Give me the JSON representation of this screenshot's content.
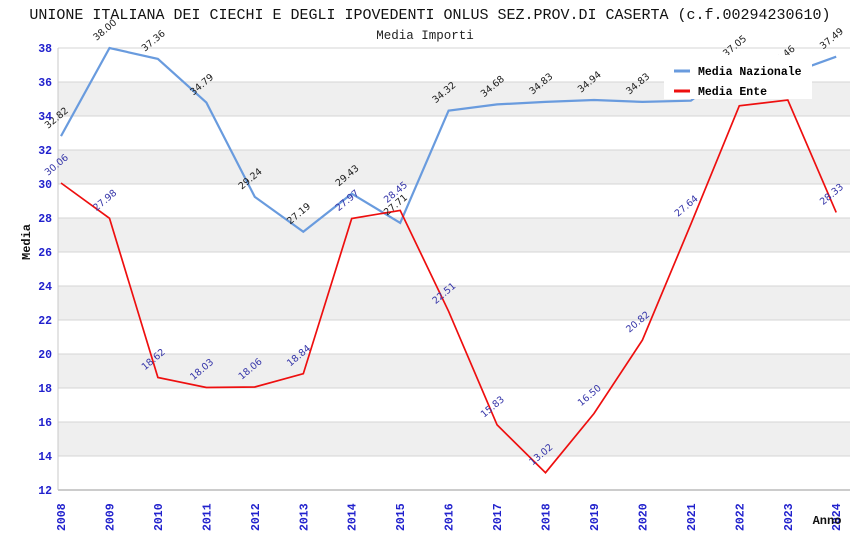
{
  "chart_data": {
    "type": "line",
    "title": "UNIONE ITALIANA DEI CIECHI E DEGLI IPOVEDENTI ONLUS SEZ.PROV.DI CASERTA (c.f.00294230610)",
    "subtitle": "Media Importi",
    "xlabel": "Anno",
    "ylabel": "Media",
    "x_categories": [
      "2008",
      "2009",
      "2010",
      "2011",
      "2012",
      "2013",
      "2014",
      "2015",
      "2016",
      "2017",
      "2018",
      "2019",
      "2020",
      "2021",
      "2022",
      "2023",
      "2024"
    ],
    "y_axis": {
      "min": 12,
      "max": 38,
      "step": 2
    },
    "grid": {
      "alternating_bands": true,
      "band_color": "#efefef",
      "grid_color": "#d6d6d6",
      "bottom_axis_color": "#9a9a9a",
      "left_axis_color": "#c8c8c8"
    },
    "axis_tick_color": "#2121cd",
    "legend": {
      "position": "top-right",
      "background": "#ffffff"
    },
    "series": [
      {
        "name": "Media Nazionale",
        "color": "#699bde",
        "label_color": "#1c1c1c",
        "values": [
          32.82,
          38.0,
          37.36,
          34.79,
          29.24,
          27.19,
          29.43,
          27.71,
          34.32,
          34.68,
          34.83,
          34.94,
          34.83,
          34.9,
          37.05,
          36.46,
          37.49
        ],
        "labels": [
          "32.82",
          "38.00",
          "37.36",
          "34.79",
          "29.24",
          "27.19",
          "29.43",
          "27.71",
          "34.32",
          "34.68",
          "34.83",
          "34.94",
          "34.83",
          null,
          "37.05",
          "36.46",
          "37.49"
        ]
      },
      {
        "name": "Media Ente",
        "color": "#ee0f0f",
        "label_color": "#3434a8",
        "values": [
          30.06,
          27.98,
          18.62,
          18.03,
          18.06,
          18.84,
          27.97,
          28.45,
          22.51,
          15.83,
          13.02,
          16.5,
          20.82,
          27.64,
          34.6,
          34.94,
          28.33
        ],
        "labels": [
          "30.06",
          "27.98",
          "18.62",
          "18.03",
          "18.06",
          "18.84",
          "27.97",
          "28.45",
          "22.51",
          "15.83",
          "13.02",
          "16.50",
          "20.82",
          "27.64",
          null,
          null,
          "28.33"
        ]
      }
    ]
  }
}
